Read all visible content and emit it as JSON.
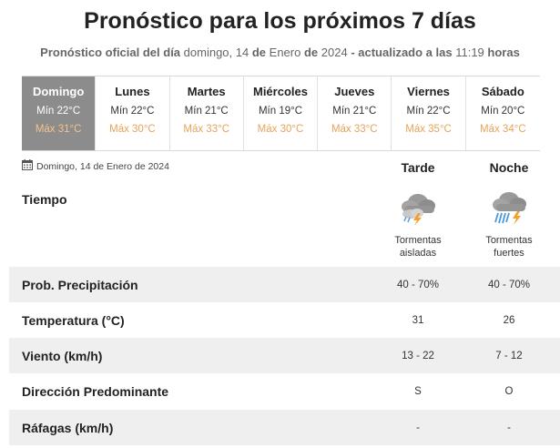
{
  "header": {
    "title": "Pronóstico para los próximos 7 días",
    "sub_bold1": "Pronóstico oficial del día",
    "sub_date_day": "domingo, 14",
    "sub_de1": "de",
    "sub_month": "Enero",
    "sub_de2": "de",
    "sub_year": "2024",
    "sub_updated": "- actualizado a las",
    "sub_time": "11:19",
    "sub_hours": "horas"
  },
  "days": [
    {
      "name": "Domingo",
      "min": "Mín 22°C",
      "max": "Máx 31°C",
      "active": true
    },
    {
      "name": "Lunes",
      "min": "Mín 22°C",
      "max": "Máx 30°C"
    },
    {
      "name": "Martes",
      "min": "Mín 21°C",
      "max": "Máx 33°C"
    },
    {
      "name": "Miércoles",
      "min": "Mín 19°C",
      "max": "Máx 30°C"
    },
    {
      "name": "Jueves",
      "min": "Mín 21°C",
      "max": "Máx 33°C"
    },
    {
      "name": "Viernes",
      "min": "Mín 22°C",
      "max": "Máx 35°C"
    },
    {
      "name": "Sábado",
      "min": "Mín 20°C",
      "max": "Máx 34°C"
    }
  ],
  "detail": {
    "date": "Domingo, 14 de Enero de 2024",
    "columns": [
      "Tarde",
      "Noche"
    ],
    "tiempo_label": "Tiempo",
    "weather": [
      {
        "icon": "storm-cloud-icon",
        "line1": "Tormentas",
        "line2": "aisladas"
      },
      {
        "icon": "heavy-storm-rain-icon",
        "line1": "Tormentas",
        "line2": "fuertes"
      }
    ],
    "rows": [
      {
        "label": "Prob. Precipitación",
        "tarde": "40 - 70%",
        "noche": "40 - 70%"
      },
      {
        "label": "Temperatura (°C)",
        "tarde": "31",
        "noche": "26"
      },
      {
        "label": "Viento (km/h)",
        "tarde": "13 - 22",
        "noche": "7 - 12"
      },
      {
        "label": "Dirección Predominante",
        "tarde": "S",
        "noche": "O"
      },
      {
        "label": "Ráfagas (km/h)",
        "tarde": "-",
        "noche": "-"
      }
    ]
  },
  "colors": {
    "active_day_bg": "#8c8c8c",
    "max_temp": "#e8a35a",
    "row_shade": "#efefef",
    "lightning": "#f2a22c"
  }
}
